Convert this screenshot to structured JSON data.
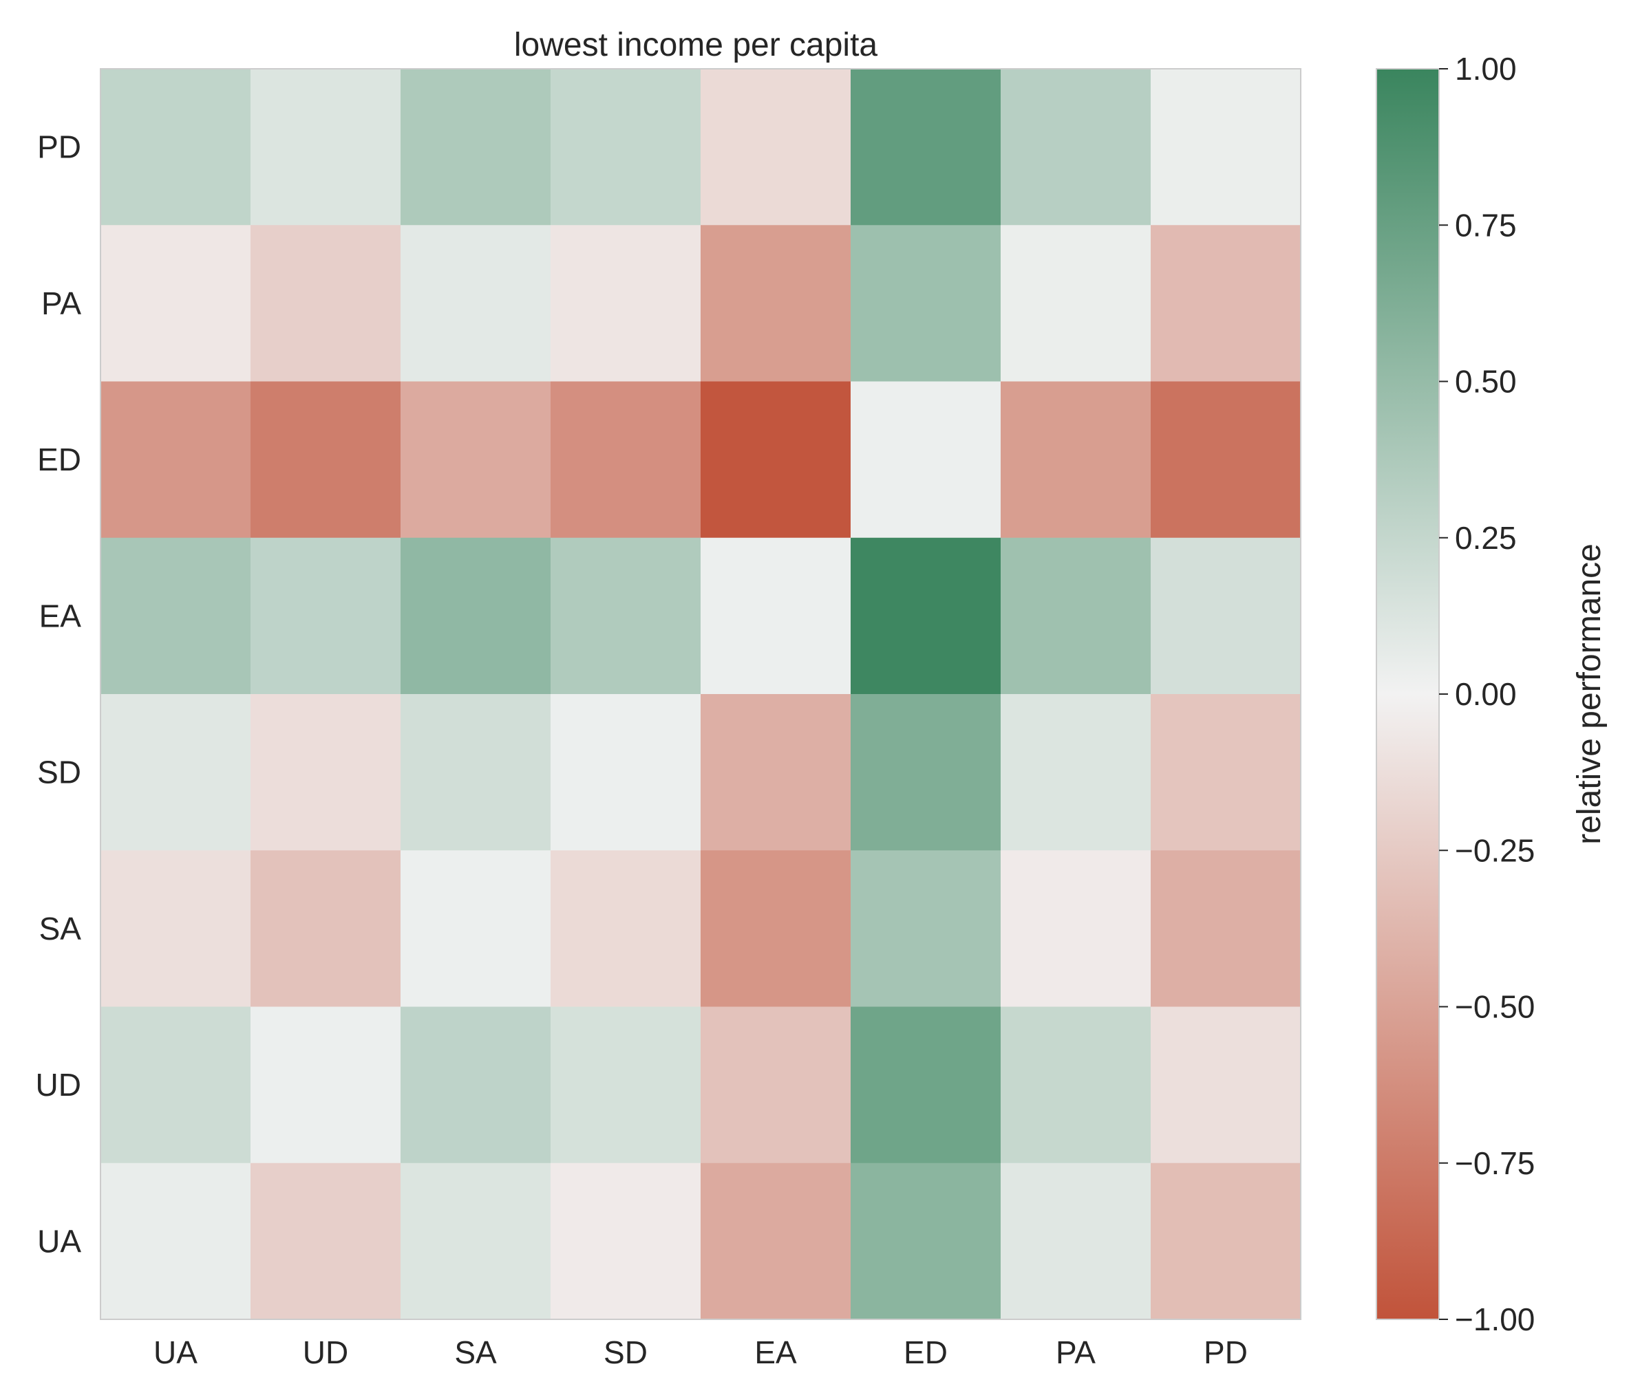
{
  "chart_data": {
    "type": "heatmap",
    "title": "lowest income per capita",
    "x_categories": [
      "UA",
      "UD",
      "SA",
      "SD",
      "EA",
      "ED",
      "PA",
      "PD"
    ],
    "y_categories": [
      "PD",
      "PA",
      "ED",
      "EA",
      "SD",
      "SA",
      "UD",
      "UA"
    ],
    "values": [
      [
        0.27,
        0.12,
        0.37,
        0.25,
        -0.15,
        0.78,
        0.32,
        0.04
      ],
      [
        -0.07,
        -0.22,
        0.08,
        -0.08,
        -0.53,
        0.46,
        0.04,
        -0.35
      ],
      [
        -0.57,
        -0.73,
        -0.45,
        -0.62,
        -0.98,
        0.03,
        -0.53,
        -0.8
      ],
      [
        0.4,
        0.28,
        0.53,
        0.36,
        0.03,
        0.98,
        0.45,
        0.17
      ],
      [
        0.1,
        -0.13,
        0.18,
        0.03,
        -0.42,
        0.62,
        0.12,
        -0.28
      ],
      [
        -0.12,
        -0.3,
        0.03,
        -0.15,
        -0.58,
        0.42,
        -0.05,
        -0.42
      ],
      [
        0.2,
        0.03,
        0.28,
        0.16,
        -0.3,
        0.71,
        0.24,
        -0.12
      ],
      [
        0.05,
        -0.22,
        0.12,
        -0.05,
        -0.45,
        0.56,
        0.1,
        -0.33
      ]
    ],
    "colorbar": {
      "label": "relative performance",
      "range": [
        -1.0,
        1.0
      ],
      "ticks": [
        "1.00",
        "0.75",
        "0.50",
        "0.25",
        "0.00",
        "−0.25",
        "−0.50",
        "−0.75",
        "−1.00"
      ],
      "tick_values": [
        1.0,
        0.75,
        0.5,
        0.25,
        0.0,
        -0.25,
        -0.5,
        -0.75,
        -1.0
      ],
      "color_low": "#c1533a",
      "color_mid": "#f2f2f2",
      "color_high": "#3a855e"
    },
    "grid": false,
    "legend": "colorbar-right"
  }
}
